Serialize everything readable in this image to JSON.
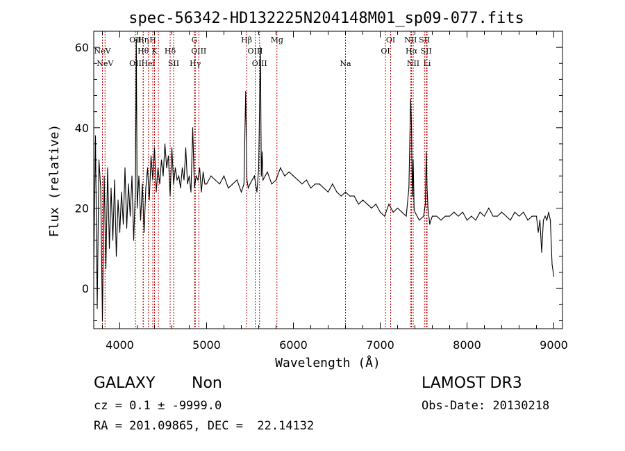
{
  "chart_data": {
    "type": "line",
    "title": "spec-56342-HD132225N204148M01_sp09-077.fits",
    "xlabel": "Wavelength (Å)",
    "ylabel": "Flux (relative)",
    "xlim": [
      3700,
      9100
    ],
    "ylim": [
      -10,
      64
    ],
    "xticks": [
      4000,
      5000,
      6000,
      7000,
      8000,
      9000
    ],
    "yticks": [
      0,
      20,
      40,
      60
    ],
    "grid": false,
    "legend": "none",
    "line_color": "#000000",
    "marker_color": "#cc0000",
    "series": [
      {
        "x": [
          3700,
          3720,
          3740,
          3760,
          3780,
          3800,
          3820,
          3840,
          3860,
          3880,
          3900,
          3920,
          3940,
          3960,
          3980,
          4000,
          4020,
          4040,
          4060,
          4080,
          4100,
          4120,
          4140,
          4160,
          4180,
          4190,
          4200,
          4220,
          4240,
          4260,
          4280,
          4300,
          4320,
          4340,
          4360,
          4380,
          4400,
          4420,
          4440,
          4460,
          4480,
          4500,
          4520,
          4540,
          4560,
          4580,
          4600,
          4620,
          4640,
          4660,
          4680,
          4700,
          4720,
          4740,
          4760,
          4780,
          4800,
          4820,
          4840,
          4860,
          4880,
          4900,
          4920,
          4940,
          4960,
          4980,
          5000,
          5050,
          5100,
          5150,
          5200,
          5250,
          5300,
          5350,
          5400,
          5430,
          5450,
          5465,
          5480,
          5500,
          5550,
          5580,
          5600,
          5620,
          5630,
          5640,
          5650,
          5700,
          5750,
          5800,
          5850,
          5900,
          5950,
          6000,
          6050,
          6100,
          6150,
          6200,
          6250,
          6300,
          6350,
          6400,
          6450,
          6500,
          6550,
          6600,
          6650,
          6700,
          6750,
          6800,
          6850,
          6900,
          6950,
          7000,
          7050,
          7100,
          7150,
          7200,
          7250,
          7300,
          7330,
          7350,
          7360,
          7370,
          7380,
          7390,
          7400,
          7450,
          7500,
          7520,
          7530,
          7540,
          7550,
          7570,
          7600,
          7650,
          7700,
          7750,
          7800,
          7850,
          7900,
          7950,
          8000,
          8050,
          8100,
          8150,
          8200,
          8250,
          8300,
          8350,
          8400,
          8450,
          8500,
          8550,
          8600,
          8650,
          8700,
          8750,
          8800,
          8820,
          8840,
          8860,
          8880,
          8900,
          8920,
          8940,
          8960,
          8980,
          9000
        ],
        "values": [
          5,
          38,
          -5,
          32,
          25,
          -8,
          28,
          5,
          30,
          10,
          25,
          12,
          27,
          8,
          22,
          14,
          24,
          16,
          30,
          15,
          26,
          18,
          28,
          12,
          25,
          62,
          20,
          28,
          17,
          26,
          14,
          25,
          30,
          22,
          33,
          27,
          35,
          24,
          30,
          26,
          32,
          28,
          36,
          30,
          33,
          23,
          35,
          26,
          30,
          27,
          28,
          25,
          30,
          27,
          35,
          26,
          28,
          24,
          40,
          25,
          28,
          27,
          30,
          24,
          29,
          26,
          26,
          28,
          27,
          26,
          28,
          25,
          26,
          27,
          24,
          26,
          49,
          27,
          25,
          26,
          28,
          24,
          30,
          60,
          28,
          34,
          27,
          29,
          26,
          27,
          30,
          28,
          29,
          28,
          27,
          26,
          27,
          25,
          26,
          26,
          25,
          24,
          26,
          24,
          23,
          24,
          23,
          23,
          21,
          22,
          21,
          20,
          21,
          19,
          18,
          21,
          19,
          20,
          19,
          18,
          25,
          47,
          41,
          23,
          32,
          20,
          19,
          17,
          18,
          21,
          34,
          25,
          20,
          16,
          18,
          18,
          17,
          18,
          18,
          19,
          18,
          19,
          17,
          18,
          17,
          19,
          18,
          20,
          18,
          18,
          19,
          18,
          17,
          19,
          18,
          19,
          17,
          18,
          18,
          14,
          17,
          9,
          17,
          18,
          17,
          19,
          17,
          6,
          3
        ]
      }
    ],
    "lines": [
      {
        "wl": 3800,
        "label": "NeV",
        "row": 2
      },
      {
        "wl": 3830,
        "label": "NeV",
        "row": 3
      },
      {
        "wl": 4180,
        "label": "OII",
        "row": 1
      },
      {
        "wl": 4180,
        "label": "OII",
        "row": 3
      },
      {
        "wl": 4270,
        "label": "Hη",
        "row": 1
      },
      {
        "wl": 4270,
        "label": "Hθ",
        "row": 2
      },
      {
        "wl": 4330,
        "label": "HeI",
        "row": 3
      },
      {
        "wl": 4380,
        "label": "H",
        "row": 1
      },
      {
        "wl": 4400,
        "label": "K",
        "row": 2
      },
      {
        "wl": 4445,
        "label": "",
        "row": 0
      },
      {
        "wl": 4580,
        "label": "Hδ",
        "row": 2
      },
      {
        "wl": 4620,
        "label": "SII",
        "row": 3
      },
      {
        "wl": 4860,
        "label": "G",
        "row": 1
      },
      {
        "wl": 4870,
        "label": "Hγ",
        "row": 3
      },
      {
        "wl": 4910,
        "label": "OIII",
        "row": 2
      },
      {
        "wl": 5460,
        "label": "Hβ",
        "row": 1
      },
      {
        "wl": 5560,
        "label": "OIII",
        "row": 2
      },
      {
        "wl": 5610,
        "label": "OIII",
        "row": 3
      },
      {
        "wl": 5810,
        "label": "Mg",
        "row": 1
      },
      {
        "wl": 6600,
        "label": "Na",
        "row": 3
      },
      {
        "wl": 7060,
        "label": "OI",
        "row": 2
      },
      {
        "wl": 7120,
        "label": "OI",
        "row": 1
      },
      {
        "wl": 7350,
        "label": "NII",
        "row": 1
      },
      {
        "wl": 7360,
        "label": "Hα",
        "row": 2
      },
      {
        "wl": 7380,
        "label": "NII",
        "row": 3
      },
      {
        "wl": 7510,
        "label": "SII",
        "row": 1
      },
      {
        "wl": 7530,
        "label": "SII",
        "row": 2
      },
      {
        "wl": 7540,
        "label": "Li",
        "row": 3
      }
    ]
  },
  "info": {
    "class": "GALAXY",
    "subclass": "Non",
    "cz": "cz = 0.1 ± -9999.0",
    "coords": "RA = 201.09865, DEC =  22.14132",
    "survey": "LAMOST DR3",
    "obs_date": "Obs-Date: 20130218"
  }
}
